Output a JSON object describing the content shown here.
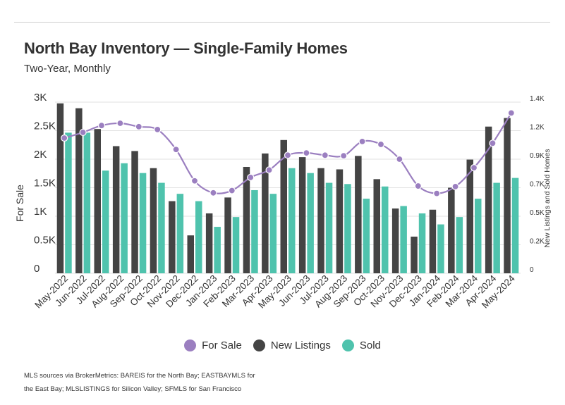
{
  "header": {
    "title": "North Bay Inventory — Single-Family Homes",
    "subtitle": "Two-Year, Monthly"
  },
  "legend": {
    "items": [
      {
        "label": "For Sale",
        "color": "#9b7fc0"
      },
      {
        "label": "New Listings",
        "color": "#444444"
      },
      {
        "label": "Sold",
        "color": "#4fc3ad"
      }
    ]
  },
  "footnote": {
    "text": "MLS sources via BrokerMetrics: BAREIS for the North Bay; EASTBAYMLS for the East Bay; MLSLISTINGS for Silicon Valley; SFMLS for San Francisco"
  },
  "chart_data": {
    "type": "bar",
    "title": "North Bay Inventory — Single-Family Homes",
    "subtitle": "Two-Year, Monthly",
    "ylabel": "For Sale",
    "y2label": "New Listings and Sold Homes",
    "ylim": [
      0,
      3000
    ],
    "y2lim": [
      0,
      1400
    ],
    "yticks": [
      "0",
      "0.5K",
      "1K",
      "1.5K",
      "2K",
      "2.5K",
      "3K"
    ],
    "y2ticks": [
      "0",
      "0.2K",
      "0.5K",
      "0.7K",
      "0.9K",
      "1.2K",
      "1.4K"
    ],
    "grid": true,
    "legend_position": "bottom",
    "categories": [
      "May-2022",
      "Jun-2022",
      "Jul-2022",
      "Aug-2022",
      "Sep-2022",
      "Oct-2022",
      "Nov-2022",
      "Dec-2022",
      "Jan-2023",
      "Feb-2023",
      "Mar-2023",
      "Apr-2023",
      "May-2023",
      "Jun-2023",
      "Jul-2023",
      "Aug-2023",
      "Sep-2023",
      "Oct-2023",
      "Nov-2023",
      "Dec-2023",
      "Jan-2024",
      "Feb-2024",
      "Mar-2024",
      "Apr-2024",
      "May-2024"
    ],
    "series": [
      {
        "name": "For Sale",
        "type": "line",
        "axis": "left",
        "color": "#9b7fc0",
        "values": [
          2370,
          2470,
          2590,
          2630,
          2570,
          2520,
          2170,
          1620,
          1410,
          1450,
          1680,
          1810,
          2070,
          2110,
          2070,
          2060,
          2310,
          2260,
          2000,
          1530,
          1400,
          1520,
          1850,
          2280,
          2810
        ]
      },
      {
        "name": "New Listings",
        "type": "bar",
        "axis": "right",
        "color": "#444444",
        "values": [
          1390,
          1350,
          1180,
          1040,
          1000,
          860,
          590,
          310,
          490,
          620,
          870,
          980,
          1090,
          950,
          860,
          850,
          960,
          770,
          530,
          300,
          520,
          700,
          930,
          1200,
          1270
        ]
      },
      {
        "name": "Sold",
        "type": "bar",
        "axis": "right",
        "color": "#4fc3ad",
        "values": [
          1150,
          1150,
          840,
          900,
          820,
          740,
          650,
          590,
          380,
          460,
          680,
          650,
          860,
          820,
          740,
          730,
          610,
          710,
          550,
          490,
          400,
          460,
          610,
          740,
          780
        ]
      }
    ]
  }
}
